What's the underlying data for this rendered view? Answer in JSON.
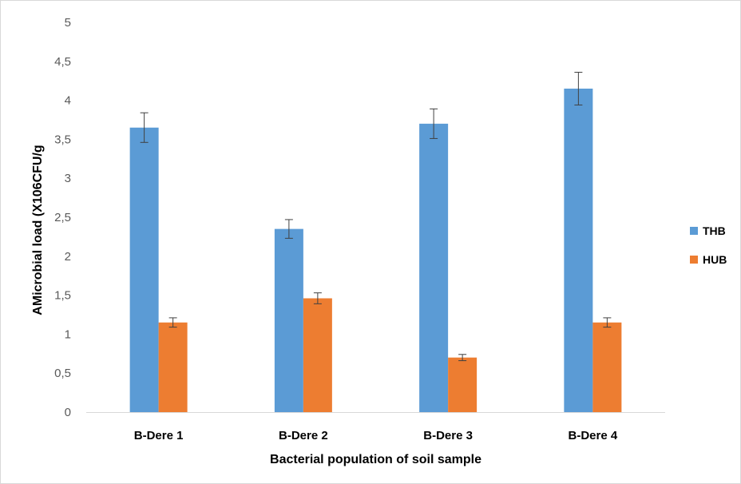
{
  "chart_data": {
    "type": "bar",
    "title": "",
    "xlabel": "Bacterial population of soil sample",
    "ylabel": "AMicrobial load (X106CFU/g",
    "categories": [
      "B-Dere 1",
      "B-Dere 2",
      "B-Dere 3",
      "B-Dere 4"
    ],
    "series": [
      {
        "name": "THB",
        "color": "#5b9bd5",
        "values": [
          3.65,
          2.35,
          3.7,
          4.15
        ],
        "errors": [
          0.19,
          0.12,
          0.19,
          0.21
        ]
      },
      {
        "name": "HUB",
        "color": "#ed7d31",
        "values": [
          1.15,
          1.46,
          0.7,
          1.15
        ],
        "errors": [
          0.06,
          0.07,
          0.04,
          0.06
        ]
      }
    ],
    "ylim": [
      0,
      5
    ],
    "yticks": [
      {
        "value": 0,
        "label": "0"
      },
      {
        "value": 0.5,
        "label": "0,5"
      },
      {
        "value": 1,
        "label": "1"
      },
      {
        "value": 1.5,
        "label": "1,5"
      },
      {
        "value": 2,
        "label": "2"
      },
      {
        "value": 2.5,
        "label": "2,5"
      },
      {
        "value": 3,
        "label": "3"
      },
      {
        "value": 3.5,
        "label": "3,5"
      },
      {
        "value": 4,
        "label": "4"
      },
      {
        "value": 4.5,
        "label": "4,5"
      },
      {
        "value": 5,
        "label": "5"
      }
    ],
    "grid": false,
    "legend_position": "right"
  }
}
